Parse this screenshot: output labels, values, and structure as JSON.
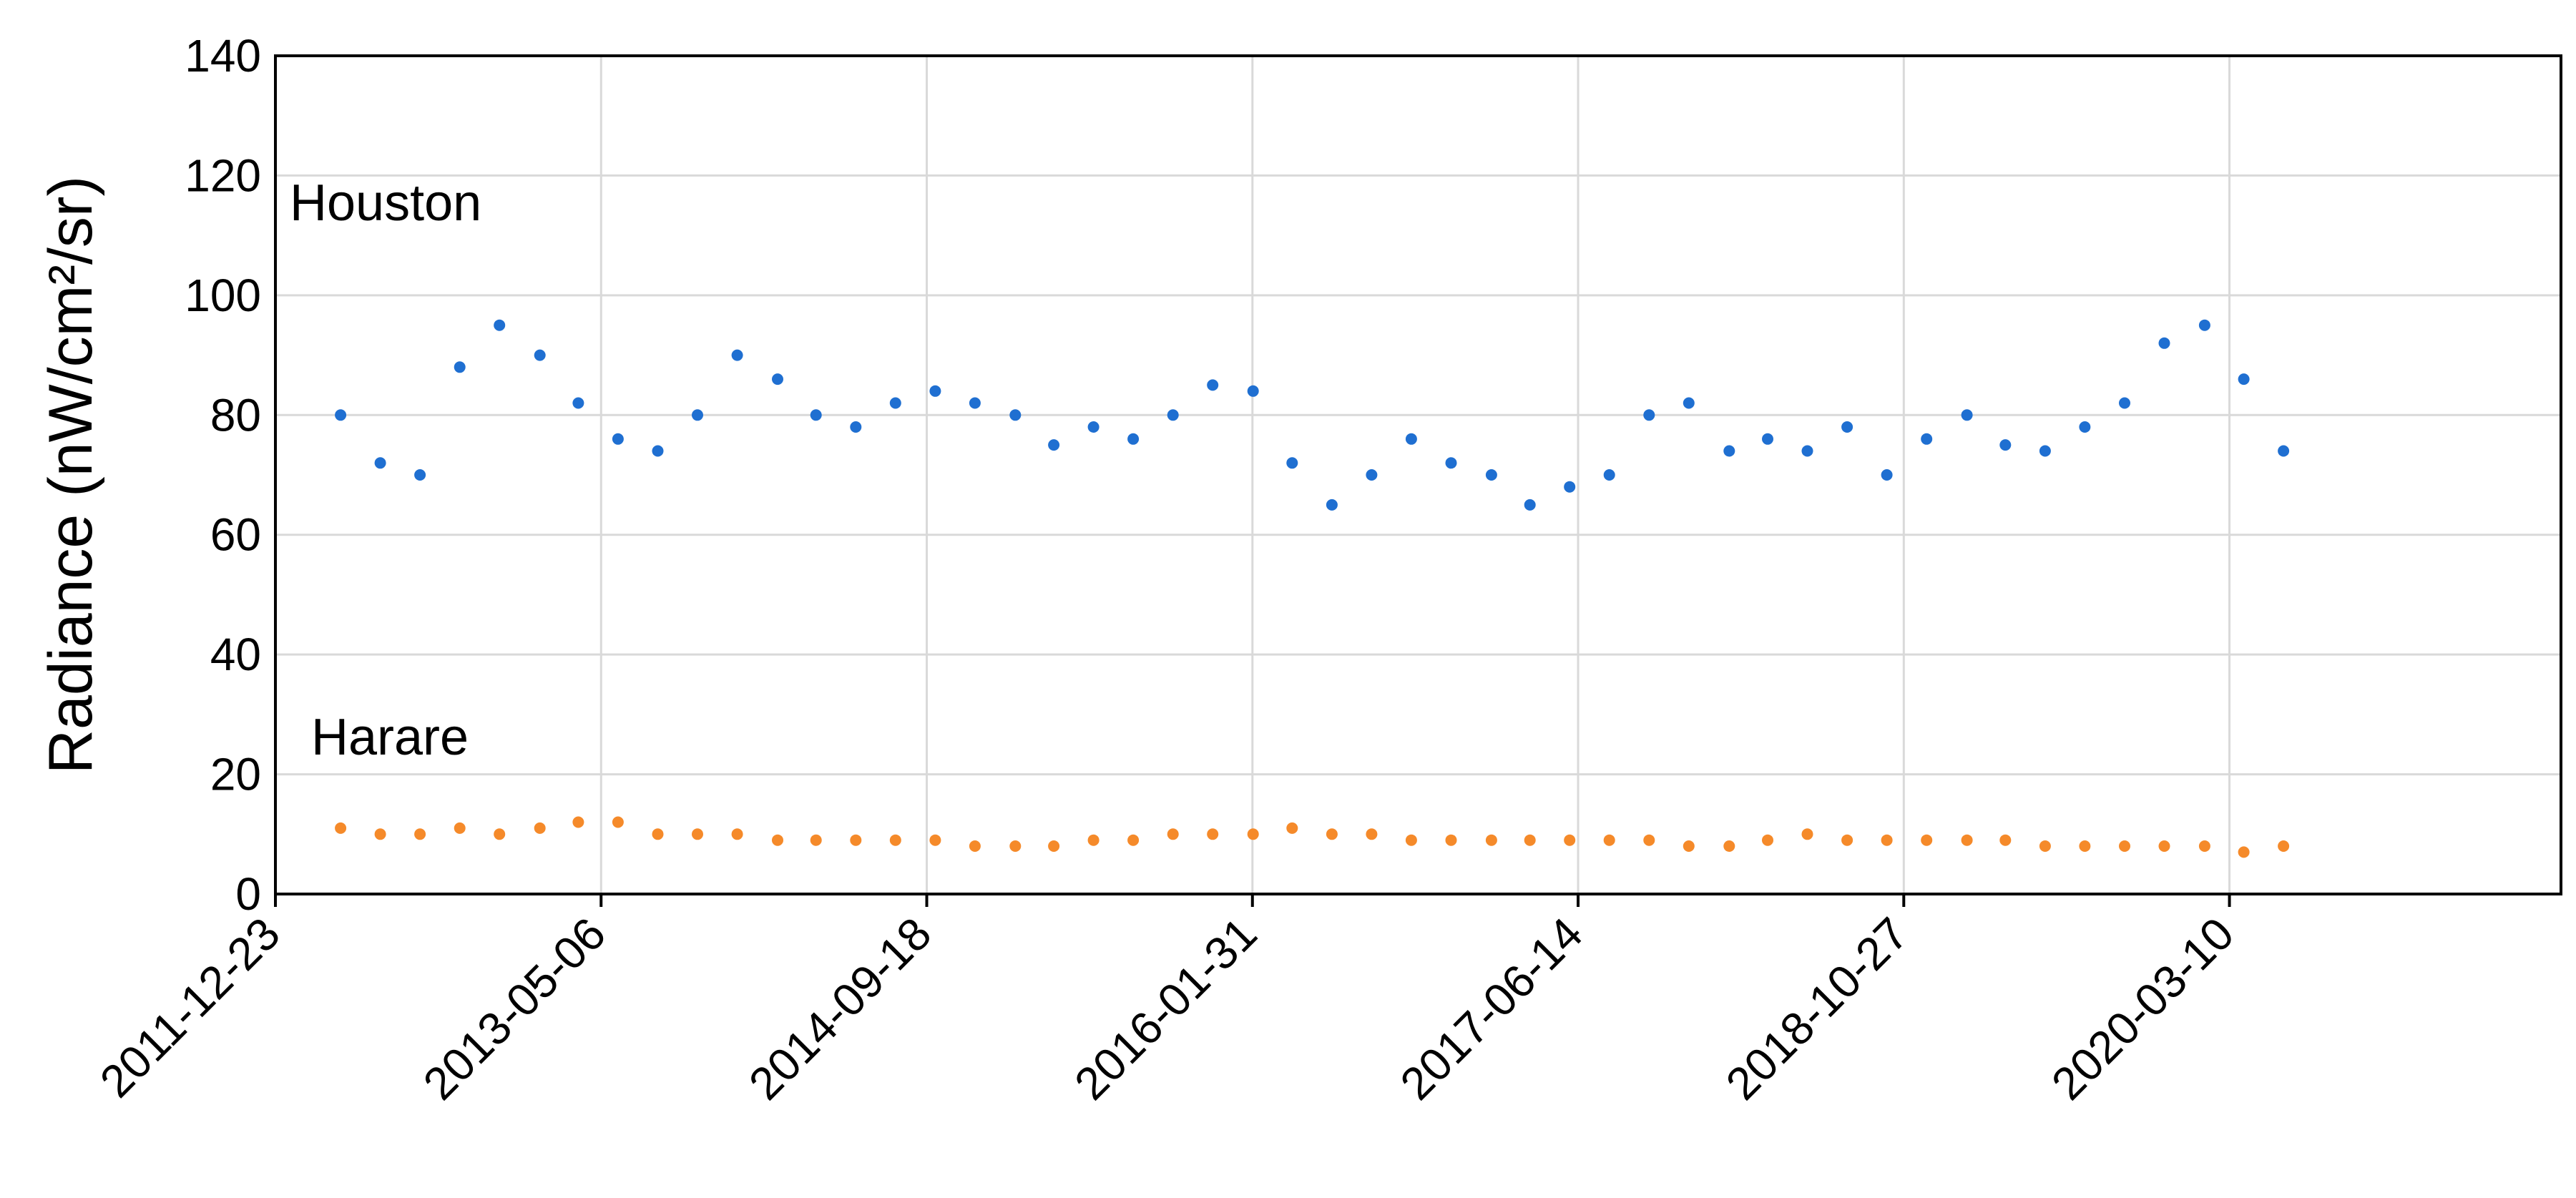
{
  "chart_data": {
    "type": "scatter",
    "title": "",
    "xlabel": "",
    "ylabel": "Radiance (nW/cm²/sr)",
    "ylim": [
      0,
      140
    ],
    "y_ticks": [
      0,
      20,
      40,
      60,
      80,
      100,
      120,
      140
    ],
    "xlim": [
      "2011-12-23",
      "2021-08-01"
    ],
    "x_tick_labels": [
      "2011-12-23",
      "2013-05-06",
      "2014-09-18",
      "2016-01-31",
      "2017-06-14",
      "2018-10-27",
      "2020-03-10"
    ],
    "grid": "on",
    "legend": "none (series labelled inside plot area: top-left)",
    "colors": {
      "Houston": "#1f6fd1",
      "Harare": "#f58a2a"
    },
    "series": [
      {
        "name": "Houston",
        "x": [
          "2012-04-01",
          "2012-06-01",
          "2012-08-01",
          "2012-10-01",
          "2012-12-01",
          "2013-02-01",
          "2013-04-01",
          "2013-06-01",
          "2013-08-01",
          "2013-10-01",
          "2013-12-01",
          "2014-02-01",
          "2014-04-01",
          "2014-06-01",
          "2014-08-01",
          "2014-10-01",
          "2014-12-01",
          "2015-02-01",
          "2015-04-01",
          "2015-06-01",
          "2015-08-01",
          "2015-10-01",
          "2015-12-01",
          "2016-02-01",
          "2016-04-01",
          "2016-06-01",
          "2016-08-01",
          "2016-10-01",
          "2016-12-01",
          "2017-02-01",
          "2017-04-01",
          "2017-06-01",
          "2017-08-01",
          "2017-10-01",
          "2017-12-01",
          "2018-02-01",
          "2018-04-01",
          "2018-06-01",
          "2018-08-01",
          "2018-10-01",
          "2018-12-01",
          "2019-02-01",
          "2019-04-01",
          "2019-06-01",
          "2019-08-01",
          "2019-10-01",
          "2019-12-01",
          "2020-02-01",
          "2020-04-01",
          "2020-06-01"
        ],
        "y": [
          80,
          72,
          70,
          88,
          95,
          90,
          82,
          76,
          74,
          80,
          90,
          86,
          80,
          78,
          82,
          84,
          82,
          80,
          75,
          78,
          76,
          80,
          85,
          84,
          72,
          65,
          70,
          76,
          72,
          70,
          65,
          68,
          70,
          80,
          82,
          74,
          76,
          74,
          78,
          70,
          76,
          80,
          75,
          74,
          78,
          82,
          92,
          95,
          86,
          74
        ]
      },
      {
        "name": "Harare",
        "x": [
          "2012-04-01",
          "2012-06-01",
          "2012-08-01",
          "2012-10-01",
          "2012-12-01",
          "2013-02-01",
          "2013-04-01",
          "2013-06-01",
          "2013-08-01",
          "2013-10-01",
          "2013-12-01",
          "2014-02-01",
          "2014-04-01",
          "2014-06-01",
          "2014-08-01",
          "2014-10-01",
          "2014-12-01",
          "2015-02-01",
          "2015-04-01",
          "2015-06-01",
          "2015-08-01",
          "2015-10-01",
          "2015-12-01",
          "2016-02-01",
          "2016-04-01",
          "2016-06-01",
          "2016-08-01",
          "2016-10-01",
          "2016-12-01",
          "2017-02-01",
          "2017-04-01",
          "2017-06-01",
          "2017-08-01",
          "2017-10-01",
          "2017-12-01",
          "2018-02-01",
          "2018-04-01",
          "2018-06-01",
          "2018-08-01",
          "2018-10-01",
          "2018-12-01",
          "2019-02-01",
          "2019-04-01",
          "2019-06-01",
          "2019-08-01",
          "2019-10-01",
          "2019-12-01",
          "2020-02-01",
          "2020-04-01",
          "2020-06-01"
        ],
        "y": [
          11,
          10,
          10,
          11,
          10,
          11,
          12,
          12,
          10,
          10,
          10,
          9,
          9,
          9,
          9,
          9,
          8,
          8,
          8,
          9,
          9,
          10,
          10,
          10,
          11,
          10,
          10,
          9,
          9,
          9,
          9,
          9,
          9,
          9,
          8,
          8,
          9,
          10,
          9,
          9,
          9,
          9,
          9,
          8,
          8,
          8,
          8,
          8,
          7,
          8
        ]
      }
    ]
  }
}
